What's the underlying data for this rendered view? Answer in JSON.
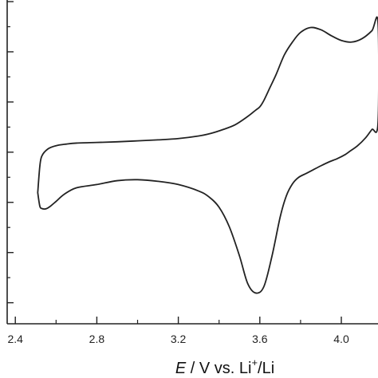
{
  "chart_data": {
    "type": "line",
    "title": "",
    "xlabel": {
      "italic": "E",
      "text1": " / V vs. Li",
      "sup": "+",
      "text2": "/Li"
    },
    "ylabel": "",
    "xlim": [
      2.36,
      4.18
    ],
    "ylim": [
      0,
      1
    ],
    "x_ticks": [
      "2.4",
      "2.8",
      "3.2",
      "3.6",
      "4.0"
    ],
    "x_tick_values": [
      2.4,
      2.8,
      3.2,
      3.6,
      4.0
    ],
    "y_tick_values": [
      0.065,
      0.22,
      0.375,
      0.53,
      0.685,
      0.84,
      0.995
    ],
    "y_tick_labels_visible": false,
    "grid": false,
    "series": [
      {
        "color": "#222222",
        "x": [
          2.51,
          2.52,
          2.53,
          2.56,
          2.6,
          2.65,
          2.7,
          2.8,
          2.9,
          3.0,
          3.1,
          3.2,
          3.3,
          3.36,
          3.42,
          3.48,
          3.54,
          3.58,
          3.6,
          3.62,
          3.65,
          3.68,
          3.72,
          3.76,
          3.8,
          3.85,
          3.9,
          3.95,
          4.0,
          4.05,
          4.1,
          4.15,
          4.18,
          4.18,
          4.15,
          4.12,
          4.08,
          4.04,
          4.02,
          3.98,
          3.94,
          3.9,
          3.86,
          3.83,
          3.79,
          3.76,
          3.73,
          3.7,
          3.66,
          3.62,
          3.58,
          3.54,
          3.5,
          3.45,
          3.4,
          3.35,
          3.3,
          3.2,
          3.1,
          3.0,
          2.9,
          2.8,
          2.7,
          2.64,
          2.6,
          2.57,
          2.55,
          2.53,
          2.52,
          2.51
        ],
        "y": [
          0.405,
          0.485,
          0.518,
          0.54,
          0.55,
          0.555,
          0.558,
          0.56,
          0.562,
          0.565,
          0.568,
          0.572,
          0.58,
          0.588,
          0.6,
          0.615,
          0.64,
          0.66,
          0.67,
          0.69,
          0.73,
          0.77,
          0.83,
          0.87,
          0.9,
          0.915,
          0.908,
          0.89,
          0.875,
          0.87,
          0.88,
          0.905,
          0.93,
          0.62,
          0.6,
          0.575,
          0.55,
          0.532,
          0.523,
          0.51,
          0.5,
          0.488,
          0.475,
          0.465,
          0.452,
          0.432,
          0.395,
          0.33,
          0.21,
          0.115,
          0.095,
          0.125,
          0.21,
          0.3,
          0.36,
          0.392,
          0.41,
          0.43,
          0.44,
          0.445,
          0.442,
          0.43,
          0.42,
          0.4,
          0.378,
          0.362,
          0.355,
          0.356,
          0.364,
          0.405
        ]
      }
    ]
  }
}
